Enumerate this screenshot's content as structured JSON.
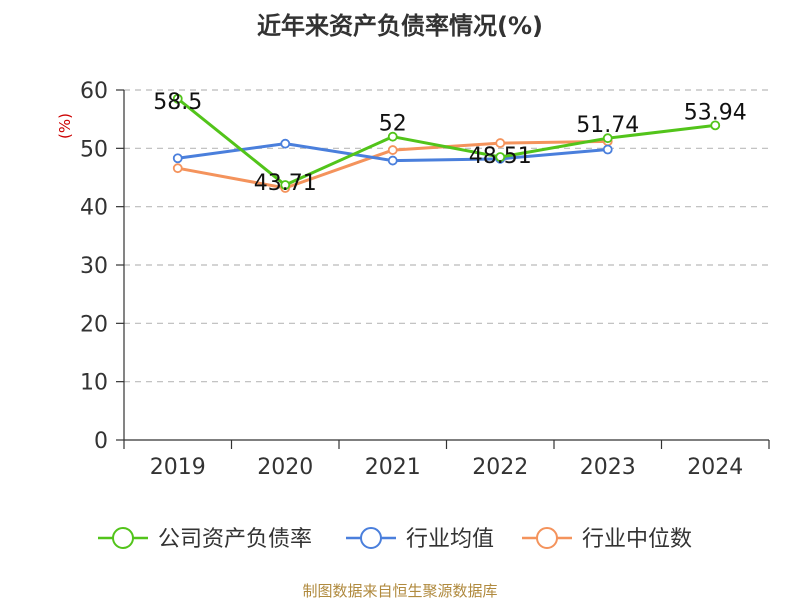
{
  "chart_data": {
    "type": "line",
    "title": "近年来资产负债率情况(%)",
    "ylabel": "(%)",
    "xlabel": "",
    "categories": [
      "2019",
      "2020",
      "2021",
      "2022",
      "2023",
      "2024"
    ],
    "ylim": [
      0,
      60
    ],
    "yticks": [
      0,
      10,
      20,
      30,
      40,
      50,
      60
    ],
    "grid": true,
    "legend_position": "bottom",
    "series": [
      {
        "name": "公司资产负债率",
        "color": "#52c41a",
        "values": [
          58.5,
          43.71,
          52,
          48.51,
          51.74,
          53.94
        ],
        "labels": [
          "58.5",
          "43.71",
          "52",
          "48.51",
          "51.74",
          "53.94"
        ]
      },
      {
        "name": "行业均值",
        "color": "#4a7fdc",
        "values": [
          48.3,
          50.8,
          47.9,
          48.2,
          49.8,
          null
        ]
      },
      {
        "name": "行业中位数",
        "color": "#f4935c",
        "values": [
          46.6,
          43.2,
          49.7,
          50.9,
          51.2,
          null
        ]
      }
    ]
  },
  "source_text": "制图数据来自恒生聚源数据库"
}
